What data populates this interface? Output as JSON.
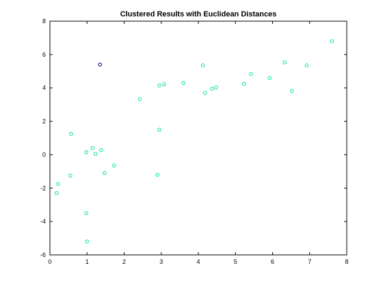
{
  "chart_data": {
    "type": "scatter",
    "title": "Clustered Results with Euclidean Distances",
    "xlabel": "",
    "ylabel": "",
    "xlim": [
      0,
      8
    ],
    "ylim": [
      -6,
      8
    ],
    "xticks": [
      "0",
      "1",
      "2",
      "3",
      "4",
      "5",
      "6",
      "7",
      "8"
    ],
    "yticks": [
      "-6",
      "-4",
      "-2",
      "0",
      "2",
      "4",
      "6",
      "8"
    ],
    "grid": false,
    "legend": "none",
    "series": [
      {
        "color": "#00e68a",
        "points": [
          [
            0.18,
            -2.3
          ],
          [
            0.22,
            -1.75
          ],
          [
            0.55,
            -1.25
          ],
          [
            0.57,
            1.25
          ],
          [
            0.98,
            0.15
          ],
          [
            0.98,
            -3.5
          ],
          [
            1.0,
            -5.2
          ],
          [
            1.15,
            0.4
          ],
          [
            1.23,
            0.05
          ],
          [
            1.38,
            0.28
          ],
          [
            1.47,
            -1.1
          ],
          [
            1.73,
            -0.65
          ],
          [
            2.42,
            3.33
          ],
          [
            2.9,
            -1.2
          ],
          [
            2.95,
            4.15
          ],
          [
            2.95,
            1.5
          ],
          [
            3.08,
            4.22
          ],
          [
            3.6,
            4.3
          ],
          [
            4.12,
            5.35
          ],
          [
            4.18,
            3.7
          ],
          [
            4.37,
            3.95
          ],
          [
            4.48,
            4.03
          ],
          [
            5.23,
            4.25
          ],
          [
            5.42,
            4.83
          ],
          [
            5.92,
            4.6
          ],
          [
            6.33,
            5.53
          ],
          [
            6.52,
            3.82
          ],
          [
            6.92,
            5.35
          ],
          [
            7.6,
            6.8
          ]
        ]
      },
      {
        "color": "#00008b",
        "points": [
          [
            1.35,
            5.4
          ]
        ]
      }
    ]
  }
}
